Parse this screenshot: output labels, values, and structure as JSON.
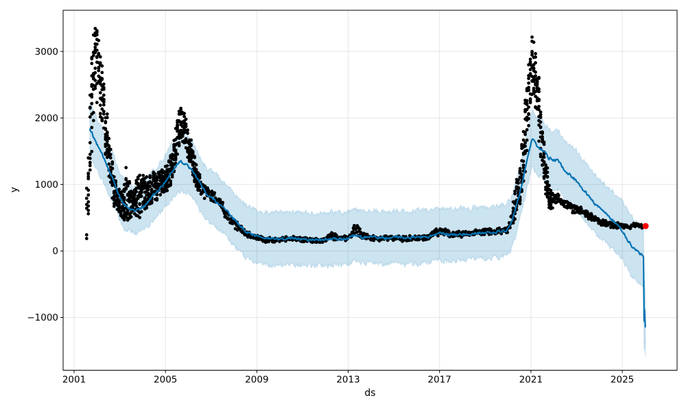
{
  "chart_data": {
    "type": "scatter",
    "title": "",
    "xlabel": "ds",
    "ylabel": "y",
    "grid": true,
    "legend": false,
    "x_ticks": [
      2001,
      2005,
      2009,
      2013,
      2017,
      2021,
      2025
    ],
    "x_tick_labels": [
      "2001",
      "2005",
      "2009",
      "2013",
      "2017",
      "2021",
      "2025"
    ],
    "y_ticks": [
      -1000,
      0,
      1000,
      2000,
      3000
    ],
    "y_tick_labels": [
      "−1000",
      "0",
      "1000",
      "2000",
      "3000"
    ],
    "xlim": [
      2000.52,
      2027.4
    ],
    "ylim": [
      -1793,
      3619
    ],
    "colors": {
      "actual_dots": "#000000",
      "forecast_line": "#0072B2",
      "uncertainty_band": "rgba(0,114,178,0.2)",
      "band_edge": "rgba(0,114,178,0.18)",
      "latest_point": "#ff0000",
      "grid_line": "#e5e5e5",
      "axis": "#000000",
      "text": "#000000"
    },
    "series": [
      {
        "name": "actual observations (black dots)",
        "kind": "scatter-cloud",
        "t_start": 2001.55,
        "t_end": 2025.88,
        "center_keypoints": [
          [
            2001.55,
            500
          ],
          [
            2001.62,
            950
          ],
          [
            2001.7,
            1700
          ],
          [
            2001.78,
            2350
          ],
          [
            2001.86,
            2750
          ],
          [
            2001.94,
            2950
          ],
          [
            2002.02,
            2800
          ],
          [
            2002.12,
            2550
          ],
          [
            2002.22,
            2300
          ],
          [
            2002.32,
            2050
          ],
          [
            2002.42,
            1750
          ],
          [
            2002.52,
            1430
          ],
          [
            2002.62,
            1150
          ],
          [
            2002.72,
            950
          ],
          [
            2002.85,
            800
          ],
          [
            2003.0,
            720
          ],
          [
            2003.15,
            690
          ],
          [
            2003.3,
            850
          ],
          [
            2003.45,
            710
          ],
          [
            2003.6,
            730
          ],
          [
            2003.9,
            850
          ],
          [
            2004.2,
            890
          ],
          [
            2004.4,
            950
          ],
          [
            2004.6,
            980
          ],
          [
            2004.8,
            1010
          ],
          [
            2005.0,
            1070
          ],
          [
            2005.2,
            1190
          ],
          [
            2005.4,
            1420
          ],
          [
            2005.55,
            1780
          ],
          [
            2005.7,
            1950
          ],
          [
            2005.85,
            1820
          ],
          [
            2006.0,
            1620
          ],
          [
            2006.15,
            1400
          ],
          [
            2006.3,
            1160
          ],
          [
            2006.5,
            990
          ],
          [
            2006.7,
            890
          ],
          [
            2006.9,
            840
          ],
          [
            2007.1,
            805
          ],
          [
            2007.35,
            765
          ],
          [
            2007.6,
            565
          ],
          [
            2007.85,
            465
          ],
          [
            2008.1,
            385
          ],
          [
            2008.4,
            295
          ],
          [
            2008.7,
            235
          ],
          [
            2009.0,
            195
          ],
          [
            2009.4,
            168
          ],
          [
            2010.0,
            172
          ],
          [
            2010.5,
            188
          ],
          [
            2011.0,
            172
          ],
          [
            2011.5,
            158
          ],
          [
            2012.0,
            168
          ],
          [
            2012.25,
            255
          ],
          [
            2012.5,
            185
          ],
          [
            2013.0,
            198
          ],
          [
            2013.35,
            330
          ],
          [
            2013.65,
            232
          ],
          [
            2014.0,
            202
          ],
          [
            2014.5,
            188
          ],
          [
            2015.0,
            198
          ],
          [
            2015.5,
            182
          ],
          [
            2016.0,
            192
          ],
          [
            2016.5,
            215
          ],
          [
            2016.9,
            295
          ],
          [
            2017.2,
            282
          ],
          [
            2017.6,
            238
          ],
          [
            2018.0,
            258
          ],
          [
            2018.5,
            272
          ],
          [
            2019.0,
            288
          ],
          [
            2019.5,
            298
          ],
          [
            2019.95,
            320
          ],
          [
            2020.2,
            520
          ],
          [
            2020.45,
            900
          ],
          [
            2020.65,
            1350
          ],
          [
            2020.82,
            2050
          ],
          [
            2020.95,
            2550
          ],
          [
            2021.05,
            2850
          ],
          [
            2021.15,
            2650
          ],
          [
            2021.3,
            2350
          ],
          [
            2021.45,
            1800
          ],
          [
            2021.6,
            1250
          ],
          [
            2021.75,
            900
          ],
          [
            2021.9,
            760
          ],
          [
            2022.2,
            790
          ],
          [
            2022.5,
            710
          ],
          [
            2022.8,
            650
          ],
          [
            2023.2,
            595
          ],
          [
            2023.6,
            525
          ],
          [
            2024.0,
            435
          ],
          [
            2024.5,
            392
          ],
          [
            2025.0,
            386
          ],
          [
            2025.3,
            368
          ],
          [
            2025.6,
            392
          ],
          [
            2025.88,
            378
          ]
        ],
        "halfspread_keypoints": [
          [
            2001.55,
            320
          ],
          [
            2001.63,
            600
          ],
          [
            2001.72,
            660
          ],
          [
            2001.82,
            620
          ],
          [
            2001.94,
            470
          ],
          [
            2002.05,
            540
          ],
          [
            2002.2,
            420
          ],
          [
            2002.4,
            350
          ],
          [
            2002.6,
            300
          ],
          [
            2002.85,
            210
          ],
          [
            2003.1,
            170
          ],
          [
            2003.3,
            420
          ],
          [
            2003.5,
            200
          ],
          [
            2003.9,
            350
          ],
          [
            2004.1,
            240
          ],
          [
            2004.5,
            230
          ],
          [
            2004.9,
            190
          ],
          [
            2005.2,
            230
          ],
          [
            2005.55,
            240
          ],
          [
            2005.8,
            230
          ],
          [
            2006.1,
            220
          ],
          [
            2006.4,
            160
          ],
          [
            2006.8,
            115
          ],
          [
            2007.2,
            105
          ],
          [
            2007.6,
            95
          ],
          [
            2008.0,
            75
          ],
          [
            2008.5,
            58
          ],
          [
            2009.0,
            48
          ],
          [
            2010.0,
            42
          ],
          [
            2011.0,
            40
          ],
          [
            2012.0,
            42
          ],
          [
            2012.25,
            80
          ],
          [
            2012.6,
            45
          ],
          [
            2013.0,
            50
          ],
          [
            2013.35,
            115
          ],
          [
            2013.7,
            52
          ],
          [
            2014.5,
            42
          ],
          [
            2015.5,
            42
          ],
          [
            2016.5,
            52
          ],
          [
            2016.9,
            85
          ],
          [
            2017.3,
            62
          ],
          [
            2018.0,
            50
          ],
          [
            2019.0,
            46
          ],
          [
            2019.9,
            52
          ],
          [
            2020.2,
            150
          ],
          [
            2020.45,
            300
          ],
          [
            2020.65,
            420
          ],
          [
            2020.85,
            480
          ],
          [
            2021.0,
            440
          ],
          [
            2021.1,
            420
          ],
          [
            2021.25,
            420
          ],
          [
            2021.4,
            430
          ],
          [
            2021.55,
            370
          ],
          [
            2021.7,
            300
          ],
          [
            2021.85,
            170
          ],
          [
            2022.0,
            100
          ],
          [
            2022.3,
            85
          ],
          [
            2022.7,
            75
          ],
          [
            2023.2,
            70
          ],
          [
            2024.0,
            58
          ],
          [
            2024.6,
            50
          ],
          [
            2025.2,
            40
          ],
          [
            2025.88,
            38
          ]
        ]
      },
      {
        "name": "forecast yhat (blue line)",
        "kind": "line",
        "t_start": 2001.69,
        "t_end": 2026.01,
        "keypoints": [
          [
            2001.69,
            1840
          ],
          [
            2001.8,
            1760
          ],
          [
            2001.95,
            1640
          ],
          [
            2002.1,
            1540
          ],
          [
            2002.25,
            1430
          ],
          [
            2002.45,
            1290
          ],
          [
            2002.6,
            1170
          ],
          [
            2002.75,
            1050
          ],
          [
            2002.9,
            900
          ],
          [
            2003.05,
            790
          ],
          [
            2003.2,
            700
          ],
          [
            2003.35,
            660
          ],
          [
            2003.55,
            630
          ],
          [
            2003.75,
            615
          ],
          [
            2003.95,
            640
          ],
          [
            2004.15,
            700
          ],
          [
            2004.35,
            790
          ],
          [
            2004.6,
            880
          ],
          [
            2004.8,
            960
          ],
          [
            2005.0,
            1050
          ],
          [
            2005.2,
            1150
          ],
          [
            2005.4,
            1250
          ],
          [
            2005.55,
            1320
          ],
          [
            2005.7,
            1345
          ],
          [
            2005.85,
            1320
          ],
          [
            2006.0,
            1280
          ],
          [
            2006.2,
            1210
          ],
          [
            2006.4,
            1100
          ],
          [
            2006.6,
            960
          ],
          [
            2006.8,
            860
          ],
          [
            2007.0,
            800
          ],
          [
            2007.25,
            740
          ],
          [
            2007.5,
            660
          ],
          [
            2007.75,
            585
          ],
          [
            2008.0,
            480
          ],
          [
            2008.25,
            380
          ],
          [
            2008.5,
            310
          ],
          [
            2008.75,
            255
          ],
          [
            2009.0,
            225
          ],
          [
            2009.3,
            195
          ],
          [
            2009.75,
            172
          ],
          [
            2010.3,
            196
          ],
          [
            2010.75,
            190
          ],
          [
            2011.3,
            170
          ],
          [
            2011.8,
            165
          ],
          [
            2012.25,
            185
          ],
          [
            2012.8,
            175
          ],
          [
            2013.2,
            228
          ],
          [
            2013.6,
            205
          ],
          [
            2014.1,
            212
          ],
          [
            2014.6,
            196
          ],
          [
            2015.1,
            206
          ],
          [
            2015.6,
            196
          ],
          [
            2016.1,
            206
          ],
          [
            2016.6,
            226
          ],
          [
            2017.0,
            258
          ],
          [
            2017.4,
            244
          ],
          [
            2017.9,
            254
          ],
          [
            2018.4,
            264
          ],
          [
            2018.9,
            272
          ],
          [
            2019.4,
            284
          ],
          [
            2019.9,
            302
          ],
          [
            2020.1,
            380
          ],
          [
            2020.35,
            650
          ],
          [
            2020.6,
            1000
          ],
          [
            2020.85,
            1380
          ],
          [
            2021.05,
            1700
          ],
          [
            2021.2,
            1610
          ],
          [
            2021.35,
            1560
          ],
          [
            2021.5,
            1530
          ],
          [
            2021.65,
            1460
          ],
          [
            2021.8,
            1395
          ],
          [
            2022.0,
            1370
          ],
          [
            2022.2,
            1360
          ],
          [
            2022.5,
            1205
          ],
          [
            2022.75,
            1130
          ],
          [
            2023.0,
            1050
          ],
          [
            2023.25,
            945
          ],
          [
            2023.5,
            835
          ],
          [
            2023.75,
            735
          ],
          [
            2024.0,
            645
          ],
          [
            2024.25,
            565
          ],
          [
            2024.5,
            490
          ],
          [
            2024.75,
            400
          ],
          [
            2025.0,
            310
          ],
          [
            2025.2,
            190
          ],
          [
            2025.4,
            75
          ],
          [
            2025.6,
            10
          ],
          [
            2025.8,
            -50
          ],
          [
            2025.9,
            -70
          ],
          [
            2025.93,
            -90
          ],
          [
            2025.955,
            -1060
          ],
          [
            2025.975,
            -880
          ],
          [
            2026.01,
            -1140
          ]
        ]
      },
      {
        "name": "uncertainty interval (light blue band)",
        "kind": "band",
        "halfwidth_keypoints": [
          [
            2001.69,
            400
          ],
          [
            2002.5,
            380
          ],
          [
            2003.4,
            345
          ],
          [
            2004.5,
            380
          ],
          [
            2005.6,
            430
          ],
          [
            2006.5,
            400
          ],
          [
            2008.0,
            395
          ],
          [
            2012.0,
            395
          ],
          [
            2016.0,
            400
          ],
          [
            2019.9,
            385
          ],
          [
            2020.6,
            400
          ],
          [
            2021.05,
            430
          ],
          [
            2022.0,
            430
          ],
          [
            2023.0,
            450
          ],
          [
            2024.0,
            440
          ],
          [
            2025.0,
            440
          ],
          [
            2026.01,
            450
          ]
        ]
      }
    ],
    "latest_point": {
      "t": 2026.02,
      "y": 375
    },
    "render_hints": {
      "dense_eras": [
        [
          2001.55,
          2006.5
        ],
        [
          2020.2,
          2021.95
        ]
      ],
      "column_quantum_years": 0.075,
      "scatter_step_dense": 0.006,
      "scatter_step_normal": 0.019,
      "scatter_step_sparse_start": 0.007,
      "sparse_start_until": 2001.72,
      "line_step": 0.03,
      "line_wiggle_amp": 34,
      "band_jag_amp": 60,
      "wiggle_stop_after": 2025.88,
      "dot_diameter": 4.8,
      "latest_dot_radius": 4.5,
      "line_width": 2.2,
      "seed": 7
    }
  }
}
